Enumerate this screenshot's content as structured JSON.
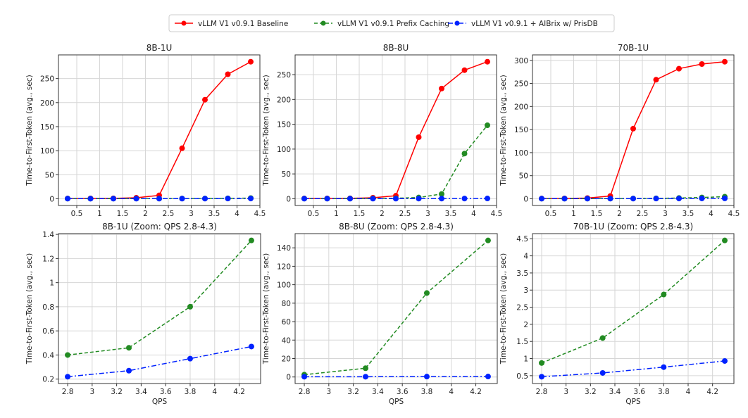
{
  "legend": {
    "entries": [
      {
        "label": "vLLM V1 v0.9.1 Baseline",
        "color": "#ff0000",
        "dash": "solid"
      },
      {
        "label": "vLLM V1 v0.9.1 Prefix Caching",
        "color": "#228b22",
        "dash": "dashed"
      },
      {
        "label": "vLLM V1 v0.9.1 + AIBrix w/ PrisDB",
        "color": "#0022ff",
        "dash": "dashdot"
      }
    ]
  },
  "chart_data": [
    {
      "type": "line",
      "title": "8B-1U",
      "xlabel": "",
      "ylabel": "Time-to-First-Token (avg., sec)",
      "x": [
        0.3,
        0.8,
        1.3,
        1.8,
        2.3,
        2.8,
        3.3,
        3.8,
        4.3
      ],
      "xticks": [
        0.5,
        1.0,
        1.5,
        2.0,
        2.5,
        3.0,
        3.5,
        4.0,
        4.5
      ],
      "yticks": [
        0,
        50,
        100,
        150,
        200,
        250
      ],
      "grid": true,
      "series": [
        {
          "name": "vLLM V1 v0.9.1 Baseline",
          "values": [
            0.5,
            0.6,
            0.8,
            2,
            7,
            105,
            206,
            259,
            285
          ]
        },
        {
          "name": "vLLM V1 v0.9.1 Prefix Caching",
          "values": [
            0.3,
            0.3,
            0.3,
            0.35,
            0.38,
            0.4,
            0.46,
            0.8,
            1.35
          ]
        },
        {
          "name": "vLLM V1 v0.9.1 + AIBrix w/ PrisDB",
          "values": [
            0.2,
            0.2,
            0.2,
            0.2,
            0.21,
            0.22,
            0.27,
            0.37,
            0.47
          ]
        }
      ]
    },
    {
      "type": "line",
      "title": "8B-8U",
      "xlabel": "",
      "ylabel": "Time-to-First-Token (avg., sec)",
      "x": [
        0.3,
        0.8,
        1.3,
        1.8,
        2.3,
        2.8,
        3.3,
        3.8,
        4.3
      ],
      "xticks": [
        0.5,
        1.0,
        1.5,
        2.0,
        2.5,
        3.0,
        3.5,
        4.0,
        4.5
      ],
      "yticks": [
        0,
        50,
        100,
        150,
        200,
        250
      ],
      "grid": true,
      "series": [
        {
          "name": "vLLM V1 v0.9.1 Baseline",
          "values": [
            0.5,
            0.6,
            0.8,
            2,
            6,
            124,
            222,
            259,
            276
          ]
        },
        {
          "name": "vLLM V1 v0.9.1 Prefix Caching",
          "values": [
            0.3,
            0.3,
            0.4,
            0.6,
            1,
            2.5,
            9.5,
            91,
            148
          ]
        },
        {
          "name": "vLLM V1 v0.9.1 + AIBrix w/ PrisDB",
          "values": [
            0.2,
            0.2,
            0.2,
            0.2,
            0.2,
            0.3,
            0.3,
            0.4,
            0.5
          ]
        }
      ]
    },
    {
      "type": "line",
      "title": "70B-1U",
      "xlabel": "",
      "ylabel": "Time-to-First-Token (avg., sec)",
      "x": [
        0.3,
        0.8,
        1.3,
        1.8,
        2.3,
        2.8,
        3.3,
        3.8,
        4.3
      ],
      "xticks": [
        0.5,
        1.0,
        1.5,
        2.0,
        2.5,
        3.0,
        3.5,
        4.0,
        4.5
      ],
      "yticks": [
        0,
        50,
        100,
        150,
        200,
        250,
        300
      ],
      "grid": true,
      "series": [
        {
          "name": "vLLM V1 v0.9.1 Baseline",
          "values": [
            0.5,
            0.8,
            1.5,
            6,
            152,
            258,
            282,
            292,
            297
          ]
        },
        {
          "name": "vLLM V1 v0.9.1 Prefix Caching",
          "values": [
            0.3,
            0.35,
            0.4,
            0.5,
            0.6,
            0.87,
            1.6,
            2.87,
            4.45
          ]
        },
        {
          "name": "vLLM V1 v0.9.1 + AIBrix w/ PrisDB",
          "values": [
            0.3,
            0.3,
            0.35,
            0.4,
            0.42,
            0.47,
            0.58,
            0.75,
            0.93
          ]
        }
      ]
    },
    {
      "type": "line",
      "title": "8B-1U (Zoom: QPS 2.8-4.3)",
      "xlabel": "QPS",
      "ylabel": "Time-to-First-Token (avg., sec)",
      "x": [
        2.8,
        3.3,
        3.8,
        4.3
      ],
      "xticks": [
        2.8,
        3.0,
        3.2,
        3.4,
        3.6,
        3.8,
        4.0,
        4.2
      ],
      "yticks": [
        0.2,
        0.4,
        0.6,
        0.8,
        1.0,
        1.2,
        1.4
      ],
      "grid": true,
      "series": [
        {
          "name": "vLLM V1 v0.9.1 Prefix Caching",
          "values": [
            0.4,
            0.46,
            0.8,
            1.35
          ]
        },
        {
          "name": "vLLM V1 v0.9.1 + AIBrix w/ PrisDB",
          "values": [
            0.22,
            0.27,
            0.37,
            0.47
          ]
        }
      ]
    },
    {
      "type": "line",
      "title": "8B-8U (Zoom: QPS 2.8-4.3)",
      "xlabel": "QPS",
      "ylabel": "Time-to-First-Token (avg., sec)",
      "x": [
        2.8,
        3.3,
        3.8,
        4.3
      ],
      "xticks": [
        2.8,
        3.0,
        3.2,
        3.4,
        3.6,
        3.8,
        4.0,
        4.2
      ],
      "yticks": [
        0,
        20,
        40,
        60,
        80,
        100,
        120,
        140
      ],
      "grid": true,
      "series": [
        {
          "name": "vLLM V1 v0.9.1 Prefix Caching",
          "values": [
            2.5,
            9.5,
            91,
            148
          ]
        },
        {
          "name": "vLLM V1 v0.9.1 + AIBrix w/ PrisDB",
          "values": [
            0.3,
            0.3,
            0.4,
            0.5
          ]
        }
      ]
    },
    {
      "type": "line",
      "title": "70B-1U (Zoom: QPS 2.8-4.3)",
      "xlabel": "QPS",
      "ylabel": "Time-to-First-Token (avg., sec)",
      "x": [
        2.8,
        3.3,
        3.8,
        4.3
      ],
      "xticks": [
        2.8,
        3.0,
        3.2,
        3.4,
        3.6,
        3.8,
        4.0,
        4.2
      ],
      "yticks": [
        0.5,
        1.0,
        1.5,
        2.0,
        2.5,
        3.0,
        3.5,
        4.0,
        4.5
      ],
      "grid": true,
      "series": [
        {
          "name": "vLLM V1 v0.9.1 Prefix Caching",
          "values": [
            0.87,
            1.6,
            2.87,
            4.45
          ]
        },
        {
          "name": "vLLM V1 v0.9.1 + AIBrix w/ PrisDB",
          "values": [
            0.47,
            0.58,
            0.75,
            0.93
          ]
        }
      ]
    }
  ]
}
